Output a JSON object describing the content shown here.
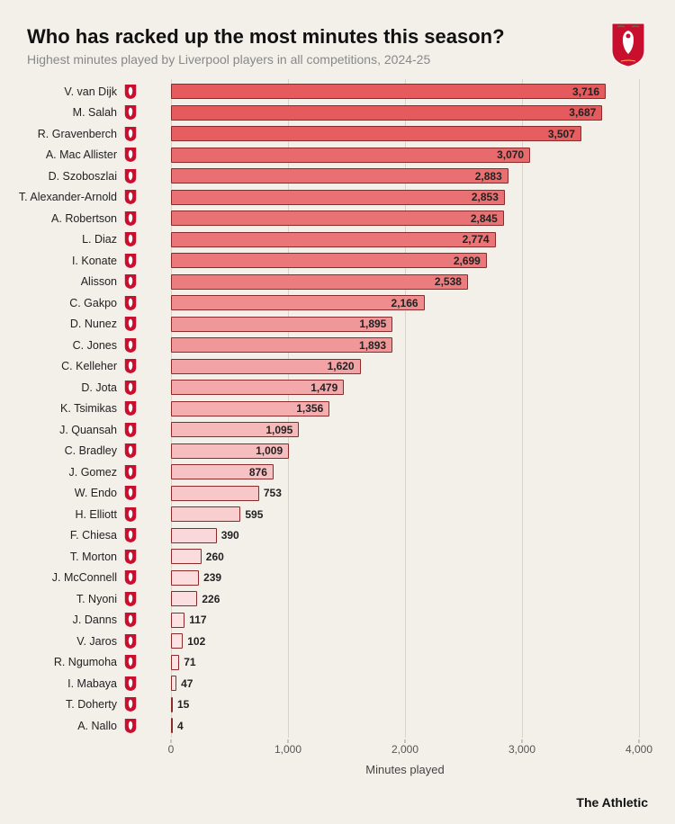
{
  "title": "Who has racked up the most minutes this season?",
  "subtitle": "Highest minutes played by Liverpool players in all competitions, 2024-25",
  "source": "The Athletic",
  "chart": {
    "type": "bar",
    "x_label": "Minutes played",
    "xlim": [
      0,
      4000
    ],
    "xtick_step": 1000,
    "xticks": [
      "0",
      "1,000",
      "2,000",
      "3,000",
      "4,000"
    ],
    "background_color": "#f3f0ea",
    "grid_color": "#d8d4cc",
    "bar_border_color": "#8a2a2a",
    "label_fontsize": 12.5,
    "value_fontsize": 12,
    "inside_label_threshold": 800,
    "players": [
      {
        "name": "V. van Dijk",
        "minutes": 3716,
        "label": "3,716",
        "color": "#e55a5c"
      },
      {
        "name": "M. Salah",
        "minutes": 3687,
        "label": "3,687",
        "color": "#e55b5d"
      },
      {
        "name": "R. Gravenberch",
        "minutes": 3507,
        "label": "3,507",
        "color": "#e65e60"
      },
      {
        "name": "A. Mac Allister",
        "minutes": 3070,
        "label": "3,070",
        "color": "#e86a6c"
      },
      {
        "name": "D. Szoboszlai",
        "minutes": 2883,
        "label": "2,883",
        "color": "#e97072"
      },
      {
        "name": "T. Alexander-Arnold",
        "minutes": 2853,
        "label": "2,853",
        "color": "#e97173"
      },
      {
        "name": "A. Robertson",
        "minutes": 2845,
        "label": "2,845",
        "color": "#e97274"
      },
      {
        "name": "L. Diaz",
        "minutes": 2774,
        "label": "2,774",
        "color": "#ea7476"
      },
      {
        "name": "I. Konate",
        "minutes": 2699,
        "label": "2,699",
        "color": "#ea7779"
      },
      {
        "name": "Alisson",
        "minutes": 2538,
        "label": "2,538",
        "color": "#eb7d7f"
      },
      {
        "name": "C. Gakpo",
        "minutes": 2166,
        "label": "2,166",
        "color": "#ee8c8e"
      },
      {
        "name": "D. Nunez",
        "minutes": 1895,
        "label": "1,895",
        "color": "#f09799"
      },
      {
        "name": "C. Jones",
        "minutes": 1893,
        "label": "1,893",
        "color": "#f09799"
      },
      {
        "name": "C. Kelleher",
        "minutes": 1620,
        "label": "1,620",
        "color": "#f2a3a5"
      },
      {
        "name": "D. Jota",
        "minutes": 1479,
        "label": "1,479",
        "color": "#f3a9ab"
      },
      {
        "name": "K. Tsimikas",
        "minutes": 1356,
        "label": "1,356",
        "color": "#f4aeaf"
      },
      {
        "name": "J. Quansah",
        "minutes": 1095,
        "label": "1,095",
        "color": "#f6b9ba"
      },
      {
        "name": "C. Bradley",
        "minutes": 1009,
        "label": "1,009",
        "color": "#f6bdbe"
      },
      {
        "name": "J. Gomez",
        "minutes": 876,
        "label": "876",
        "color": "#f7c2c3"
      },
      {
        "name": "W. Endo",
        "minutes": 753,
        "label": "753",
        "color": "#f8c8c9"
      },
      {
        "name": "H. Elliott",
        "minutes": 595,
        "label": "595",
        "color": "#f9cecf"
      },
      {
        "name": "F. Chiesa",
        "minutes": 390,
        "label": "390",
        "color": "#fad7d8"
      },
      {
        "name": "T. Morton",
        "minutes": 260,
        "label": "260",
        "color": "#fbdcdd"
      },
      {
        "name": "J. McConnell",
        "minutes": 239,
        "label": "239",
        "color": "#fbddde"
      },
      {
        "name": "T. Nyoni",
        "minutes": 226,
        "label": "226",
        "color": "#fbdedf"
      },
      {
        "name": "J. Danns",
        "minutes": 117,
        "label": "117",
        "color": "#fce2e3"
      },
      {
        "name": "V. Jaros",
        "minutes": 102,
        "label": "102",
        "color": "#fce3e4"
      },
      {
        "name": "R. Ngumoha",
        "minutes": 71,
        "label": "71",
        "color": "#fce4e5"
      },
      {
        "name": "I. Mabaya",
        "minutes": 47,
        "label": "47",
        "color": "#fde5e6"
      },
      {
        "name": "T. Doherty",
        "minutes": 15,
        "label": "15",
        "color": "#fde7e8"
      },
      {
        "name": "A. Nallo",
        "minutes": 4,
        "label": "4",
        "color": "#fde7e8"
      }
    ]
  }
}
